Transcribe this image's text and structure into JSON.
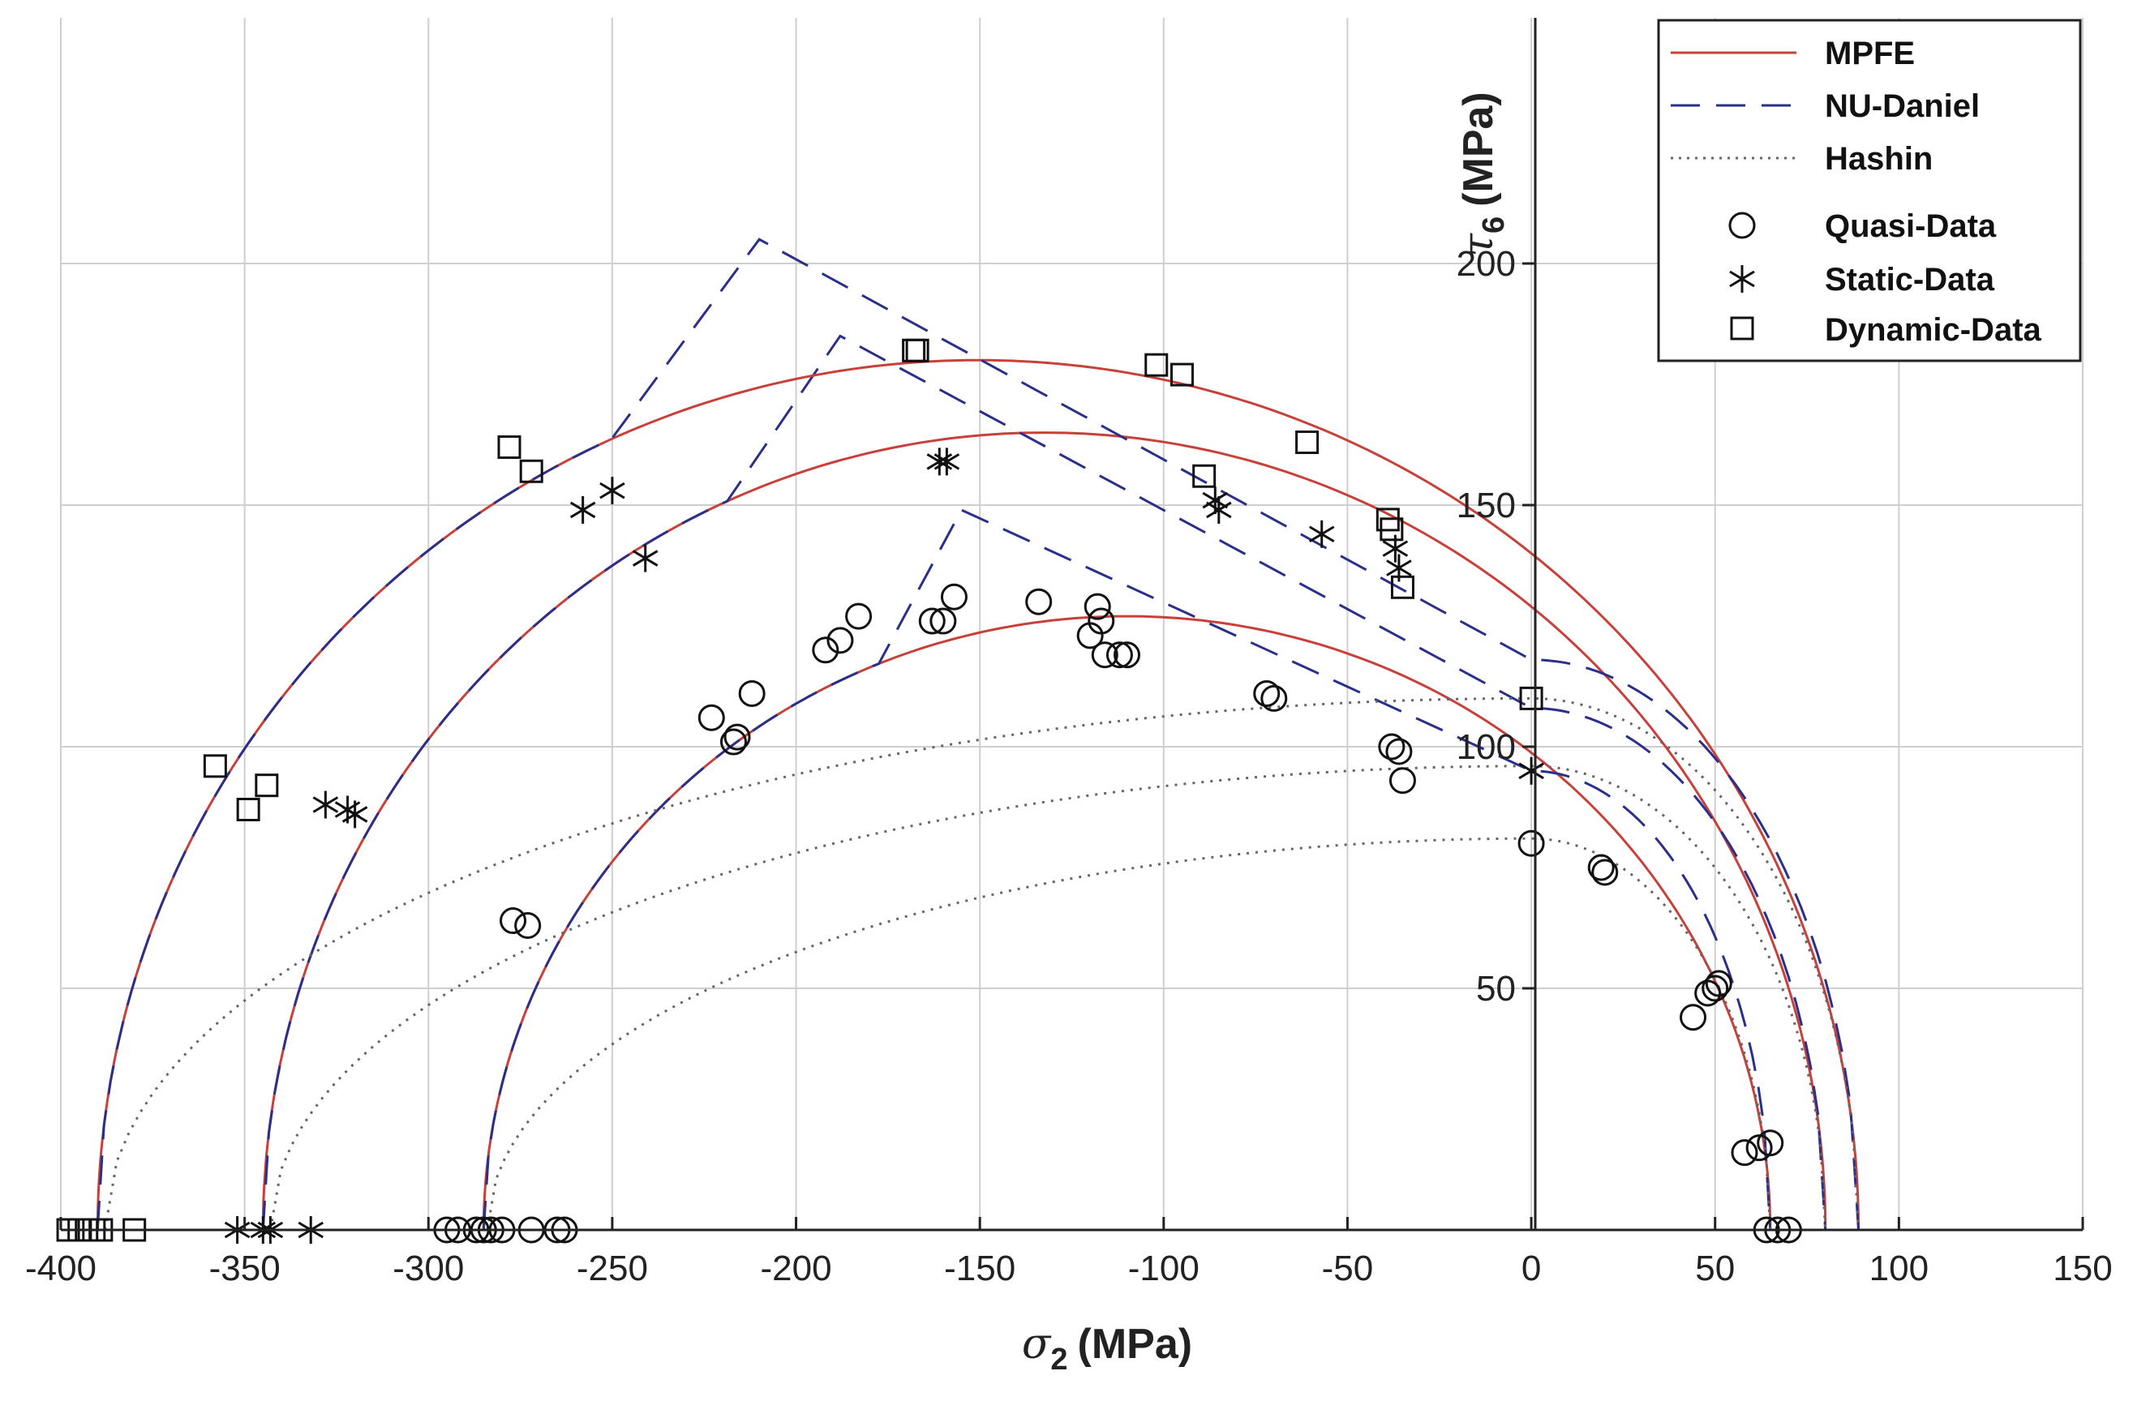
{
  "chart_data": {
    "type": "scatter",
    "title": "",
    "xlabel": {
      "symbol": "σ",
      "sub": "2",
      "unit": "(MPa)"
    },
    "ylabel": {
      "symbol": "τ",
      "sub": "6",
      "unit": "(MPa)"
    },
    "xlim": [
      -400,
      150
    ],
    "ylim": [
      0,
      250
    ],
    "x_ticks": [
      -400,
      -350,
      -300,
      -250,
      -200,
      -150,
      -100,
      -50,
      0,
      50,
      100,
      150
    ],
    "y_ticks": [
      50,
      100,
      150,
      200
    ],
    "grid": true,
    "legend_position": "top-right",
    "colors": {
      "mpfe": "#c8403a",
      "nu": "#2a2f8a",
      "hashin": "#666666",
      "markers": "#111111",
      "grid": "#cfcfcf",
      "axis": "#222222"
    },
    "legend": [
      {
        "label": "MPFE",
        "kind": "solid"
      },
      {
        "label": "NU-Daniel",
        "kind": "dashed"
      },
      {
        "label": "Hashin",
        "kind": "dotted"
      },
      {
        "label": "Quasi-Data",
        "kind": "circle"
      },
      {
        "label": "Static-Data",
        "kind": "asterisk"
      },
      {
        "label": "Dynamic-Data",
        "kind": "square"
      }
    ],
    "envelopes": [
      {
        "name": "quasi",
        "mpfe": {
          "left": -285,
          "right": 65,
          "peak": 127
        },
        "nu": {
          "left": -285,
          "peak_x": -155,
          "peak_y": 149,
          "y0": 95,
          "right": 65
        },
        "hashin": {
          "left": -284,
          "peak": 81,
          "right": 65
        }
      },
      {
        "name": "static",
        "mpfe": {
          "left": -345,
          "right": 80,
          "peak": 165
        },
        "nu": {
          "left": -345,
          "peak_x": -188,
          "peak_y": 185,
          "y0": 108,
          "right": 80
        },
        "hashin": {
          "left": -343,
          "peak": 96,
          "right": 80
        }
      },
      {
        "name": "dynamic",
        "mpfe": {
          "left": -390,
          "right": 89,
          "peak": 180
        },
        "nu": {
          "left": -390,
          "peak_x": -210,
          "peak_y": 205,
          "y0": 118,
          "right": 89
        },
        "hashin": {
          "left": -388,
          "peak": 110,
          "right": 89
        }
      }
    ],
    "series": [
      {
        "name": "Quasi-Data",
        "marker": "circle",
        "points": [
          [
            -295,
            0
          ],
          [
            -292,
            0
          ],
          [
            -287,
            0
          ],
          [
            -285,
            0
          ],
          [
            -283,
            0
          ],
          [
            -280,
            0
          ],
          [
            -272,
            0
          ],
          [
            -265,
            0
          ],
          [
            -263,
            0
          ],
          [
            -277,
            64
          ],
          [
            -273,
            63
          ],
          [
            -223,
            106
          ],
          [
            -217,
            101
          ],
          [
            -216,
            102
          ],
          [
            -212,
            111
          ],
          [
            -192,
            120
          ],
          [
            -188,
            122
          ],
          [
            -183,
            127
          ],
          [
            -163,
            126
          ],
          [
            -160,
            126
          ],
          [
            -157,
            131
          ],
          [
            -134,
            130
          ],
          [
            -120,
            123
          ],
          [
            -118,
            129
          ],
          [
            -117,
            126
          ],
          [
            -116,
            119
          ],
          [
            -112,
            119
          ],
          [
            -110,
            119
          ],
          [
            -72,
            111
          ],
          [
            -70,
            110
          ],
          [
            -38,
            100
          ],
          [
            -36,
            99
          ],
          [
            -35,
            93
          ],
          [
            0,
            80
          ],
          [
            19,
            75
          ],
          [
            20,
            74
          ],
          [
            44,
            44
          ],
          [
            48,
            49
          ],
          [
            50,
            50
          ],
          [
            51,
            51
          ],
          [
            58,
            16
          ],
          [
            62,
            17
          ],
          [
            65,
            18
          ],
          [
            64,
            0
          ],
          [
            67,
            0
          ],
          [
            70,
            0
          ]
        ]
      },
      {
        "name": "Static-Data",
        "marker": "asterisk",
        "points": [
          [
            -352,
            0
          ],
          [
            -345,
            0
          ],
          [
            -343,
            0
          ],
          [
            -332,
            0
          ],
          [
            -328,
            88
          ],
          [
            -322,
            87
          ],
          [
            -320,
            86
          ],
          [
            -258,
            149
          ],
          [
            -250,
            153
          ],
          [
            -241,
            139
          ],
          [
            -161,
            159
          ],
          [
            -159,
            159
          ],
          [
            -86,
            151
          ],
          [
            -85,
            149
          ],
          [
            -57,
            144
          ],
          [
            -37,
            141
          ],
          [
            -36,
            137
          ],
          [
            0,
            95
          ]
        ]
      },
      {
        "name": "Dynamic-Data",
        "marker": "square",
        "points": [
          [
            -398,
            0
          ],
          [
            -395,
            0
          ],
          [
            -393,
            0
          ],
          [
            -391,
            0
          ],
          [
            -389,
            0
          ],
          [
            -380,
            0
          ],
          [
            -358,
            96
          ],
          [
            -349,
            87
          ],
          [
            -344,
            92
          ],
          [
            -278,
            162
          ],
          [
            -272,
            157
          ],
          [
            -168,
            182
          ],
          [
            -167,
            182
          ],
          [
            -102,
            179
          ],
          [
            -95,
            177
          ],
          [
            -89,
            156
          ],
          [
            -61,
            163
          ],
          [
            -39,
            147
          ],
          [
            -38,
            145
          ],
          [
            -35,
            133
          ],
          [
            0,
            110
          ]
        ]
      }
    ]
  }
}
